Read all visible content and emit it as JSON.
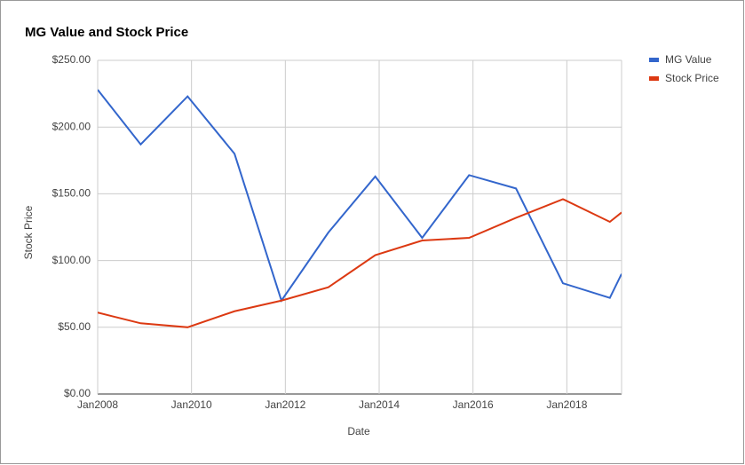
{
  "chart_data": {
    "type": "line",
    "title": "MG Value and Stock Price",
    "x_label": "Date",
    "y_label": "Stock Price",
    "x": [
      "2008-01",
      "2008-12",
      "2009-12",
      "2010-12",
      "2011-12",
      "2012-12",
      "2013-12",
      "2014-12",
      "2015-12",
      "2016-12",
      "2017-12",
      "2018-12",
      "2019-03"
    ],
    "series": [
      {
        "name": "MG Value",
        "color": "#3366cc",
        "values": [
          228,
          187,
          223,
          180,
          70,
          121,
          163,
          117,
          164,
          154,
          83,
          72,
          90
        ]
      },
      {
        "name": "Stock Price",
        "color": "#dc3912",
        "values": [
          61,
          53,
          50,
          62,
          70,
          80,
          104,
          115,
          117,
          132,
          146,
          129,
          136
        ]
      }
    ],
    "xlim": [
      "2008-01",
      "2019-03"
    ],
    "xticks": [
      {
        "value": "2008-01",
        "label": "Jan2008"
      },
      {
        "value": "2010-01",
        "label": "Jan2010"
      },
      {
        "value": "2012-01",
        "label": "Jan2012"
      },
      {
        "value": "2014-01",
        "label": "Jan2014"
      },
      {
        "value": "2016-01",
        "label": "Jan2016"
      },
      {
        "value": "2018-01",
        "label": "Jan2018"
      }
    ],
    "ylim": [
      0,
      250
    ],
    "yticks": [
      {
        "value": 0,
        "label": "$0.00"
      },
      {
        "value": 50,
        "label": "$50.00"
      },
      {
        "value": 100,
        "label": "$100.00"
      },
      {
        "value": 150,
        "label": "$150.00"
      },
      {
        "value": 200,
        "label": "$200.00"
      },
      {
        "value": 250,
        "label": "$250.00"
      }
    ],
    "grid": true,
    "legend_position": "right"
  }
}
